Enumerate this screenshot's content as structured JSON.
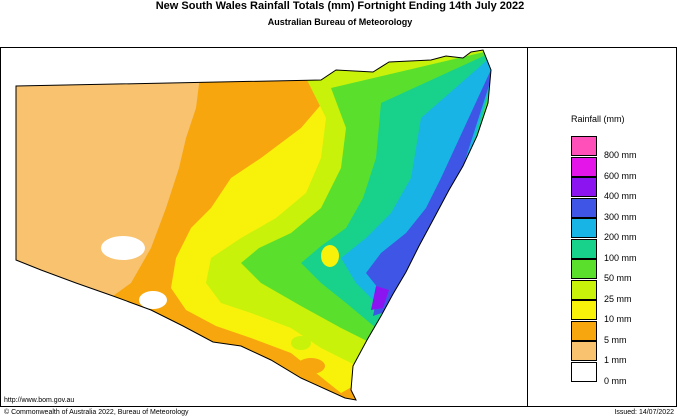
{
  "title": "New South Wales Rainfall Totals (mm)      Fortnight Ending 14th July 2022",
  "subtitle": "Australian Bureau of Meteorology",
  "legend": {
    "title": "Rainfall (mm)",
    "items": [
      {
        "label": "800 mm",
        "color": "#ff4fb8"
      },
      {
        "label": "600 mm",
        "color": "#e415e8"
      },
      {
        "label": "400 mm",
        "color": "#8c14f0"
      },
      {
        "label": "300 mm",
        "color": "#3f55e6"
      },
      {
        "label": "200 mm",
        "color": "#18b4e6"
      },
      {
        "label": "100 mm",
        "color": "#18d28c"
      },
      {
        "label": "50 mm",
        "color": "#5ae02c"
      },
      {
        "label": "25 mm",
        "color": "#c8f20a"
      },
      {
        "label": "10 mm",
        "color": "#f8f20a"
      },
      {
        "label": "5 mm",
        "color": "#f8a60e"
      },
      {
        "label": "1 mm",
        "color": "#f8c26e"
      },
      {
        "label": "0 mm",
        "color": "#ffffff"
      }
    ]
  },
  "footer": {
    "url": "http://www.bom.gov.au",
    "copyright": "© Commonwealth of Australia 2022, Bureau of Meteorology",
    "issued": "Issued: 14/07/2022"
  }
}
